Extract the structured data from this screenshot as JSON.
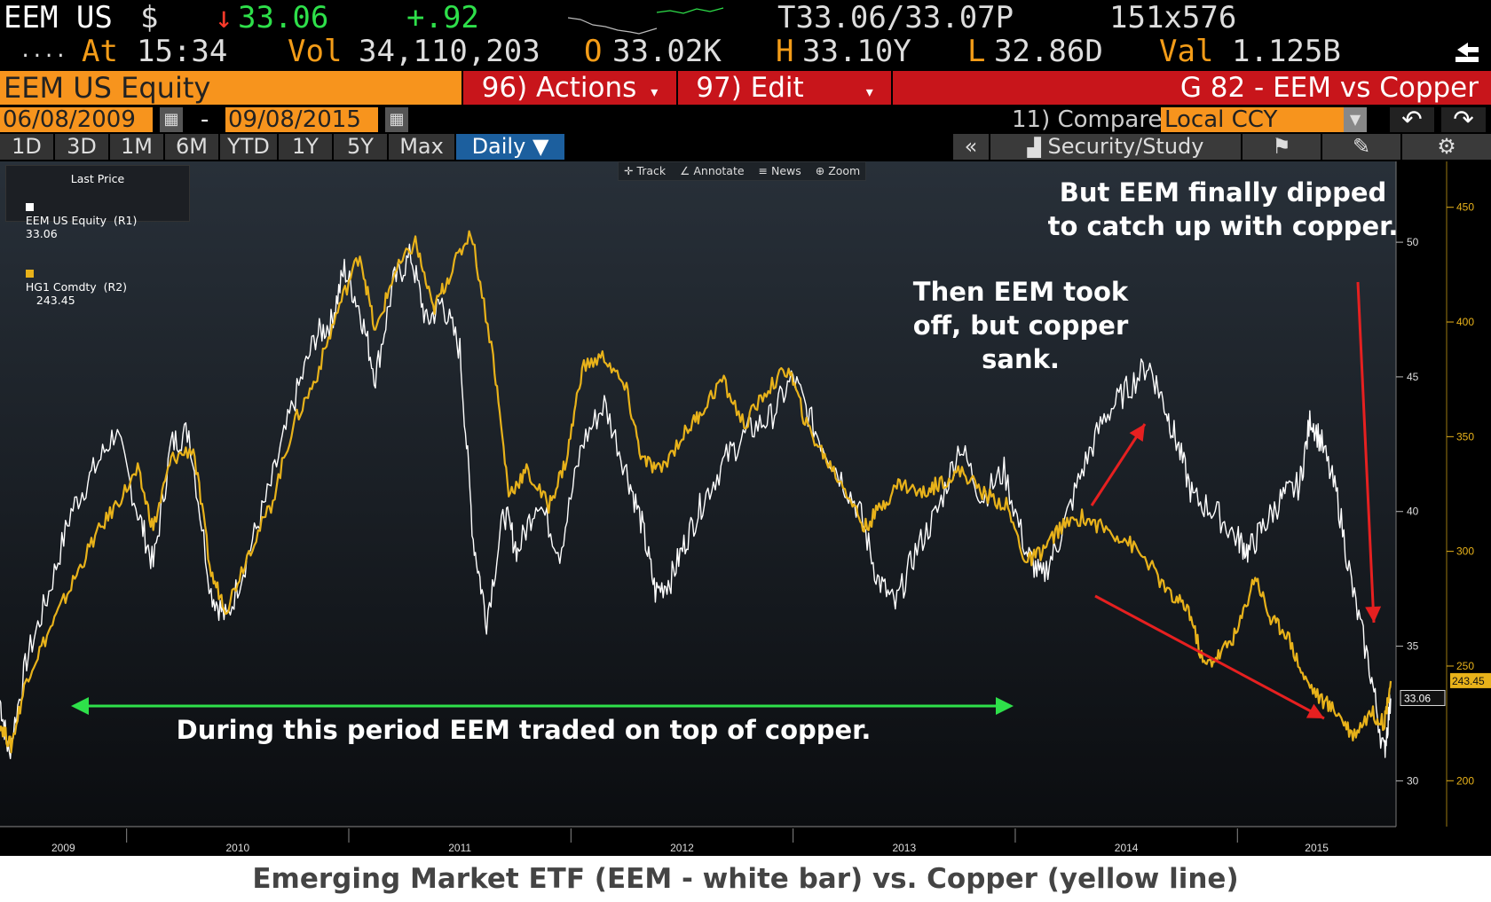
{
  "quote": {
    "ticker": "EEM US",
    "currency": "$",
    "last_arrow": "↓",
    "last": "33.06",
    "change": "+.92",
    "bid_ask": "T33.06/33.07P",
    "size": "151x576",
    "dots": "....",
    "at_label": "At",
    "time": "15:34",
    "vol_label": "Vol",
    "volume": "34,110,203",
    "open_label": "O",
    "open": "33.02K",
    "high_label": "H",
    "high": "33.10Y",
    "low_label": "L",
    "low": "32.86D",
    "val_label": "Val",
    "value": "1.125B"
  },
  "toolbar_row": {
    "security": "EEM US Equity",
    "actions": "96) Actions",
    "edit": "97) Edit",
    "graph_title": "G 82 - EEM vs Copper"
  },
  "date_row": {
    "start_date": "06/08/2009",
    "separator": "-",
    "end_date": "09/08/2015",
    "compare_label": "11) Compare",
    "ccy": "Local CCY",
    "back_icon": "undo-arrow-icon",
    "forward_icon": "redo-arrow-icon"
  },
  "range_tabs": [
    "1D",
    "3D",
    "1M",
    "6M",
    "YTD",
    "1Y",
    "5Y",
    "Max"
  ],
  "period": "Daily",
  "right_tools": {
    "collapse": "«",
    "security_study": "Security/Study",
    "flag_icon": "flag-icon",
    "edit_icon": "pencil-icon",
    "settings_icon": "gear-icon"
  },
  "chart_tools": [
    "Track",
    "Annotate",
    "News",
    "Zoom"
  ],
  "legend": {
    "title": "Last Price",
    "items": [
      {
        "label": "EEM US Equity  (R1)",
        "value": "33.06",
        "color": "#ffffff"
      },
      {
        "label": "HG1 Comdty  (R2)",
        "value": "243.45",
        "color": "#e8b21a"
      }
    ]
  },
  "chart_data": {
    "type": "line",
    "x_ticks": [
      "2009",
      "2010",
      "2011",
      "2012",
      "2013",
      "2014",
      "2015"
    ],
    "r1_axis": {
      "ticks": [
        30,
        35,
        40,
        45,
        50
      ],
      "ylim": [
        28.3,
        53.0
      ]
    },
    "r2_axis": {
      "ticks": [
        200,
        250,
        300,
        350,
        400,
        450
      ],
      "ylim": [
        180,
        470
      ]
    },
    "x_range": [
      2009.43,
      2015.69
    ],
    "series": [
      {
        "name": "EEM US Equity",
        "color": "#ffffff",
        "axis": "R1",
        "last_value": 33.06,
        "points": [
          [
            2009.43,
            33.0
          ],
          [
            2009.47,
            31.0
          ],
          [
            2009.55,
            34.5
          ],
          [
            2009.65,
            37.0
          ],
          [
            2009.75,
            40.0
          ],
          [
            2009.85,
            41.5
          ],
          [
            2009.95,
            43.0
          ],
          [
            2010.05,
            40.0
          ],
          [
            2010.12,
            38.0
          ],
          [
            2010.2,
            42.5
          ],
          [
            2010.28,
            43.0
          ],
          [
            2010.38,
            37.0
          ],
          [
            2010.45,
            36.0
          ],
          [
            2010.55,
            38.5
          ],
          [
            2010.65,
            41.0
          ],
          [
            2010.75,
            44.0
          ],
          [
            2010.85,
            46.5
          ],
          [
            2010.92,
            47.0
          ],
          [
            2010.98,
            49.0
          ],
          [
            2011.05,
            47.5
          ],
          [
            2011.12,
            45.0
          ],
          [
            2011.2,
            48.5
          ],
          [
            2011.28,
            49.5
          ],
          [
            2011.35,
            47.0
          ],
          [
            2011.42,
            47.8
          ],
          [
            2011.5,
            46.0
          ],
          [
            2011.56,
            39.0
          ],
          [
            2011.62,
            36.0
          ],
          [
            2011.7,
            40.0
          ],
          [
            2011.76,
            38.5
          ],
          [
            2011.85,
            40.5
          ],
          [
            2011.95,
            38.5
          ],
          [
            2012.05,
            42.5
          ],
          [
            2012.15,
            44.0
          ],
          [
            2012.25,
            41.5
          ],
          [
            2012.32,
            39.5
          ],
          [
            2012.38,
            37.0
          ],
          [
            2012.45,
            37.5
          ],
          [
            2012.52,
            39.0
          ],
          [
            2012.6,
            40.5
          ],
          [
            2012.7,
            42.0
          ],
          [
            2012.8,
            43.0
          ],
          [
            2012.9,
            43.5
          ],
          [
            2013.0,
            45.0
          ],
          [
            2013.1,
            43.0
          ],
          [
            2013.2,
            41.5
          ],
          [
            2013.3,
            40.0
          ],
          [
            2013.38,
            37.5
          ],
          [
            2013.46,
            36.5
          ],
          [
            2013.55,
            38.5
          ],
          [
            2013.65,
            40.0
          ],
          [
            2013.75,
            42.5
          ],
          [
            2013.85,
            40.5
          ],
          [
            2013.95,
            41.5
          ],
          [
            2014.05,
            38.5
          ],
          [
            2014.12,
            37.5
          ],
          [
            2014.2,
            39.0
          ],
          [
            2014.3,
            41.5
          ],
          [
            2014.4,
            43.5
          ],
          [
            2014.5,
            44.5
          ],
          [
            2014.6,
            45.5
          ],
          [
            2014.67,
            44.0
          ],
          [
            2014.73,
            42.5
          ],
          [
            2014.8,
            40.5
          ],
          [
            2014.9,
            40.0
          ],
          [
            2015.0,
            39.0
          ],
          [
            2015.05,
            38.5
          ],
          [
            2015.12,
            39.5
          ],
          [
            2015.2,
            40.5
          ],
          [
            2015.28,
            41.0
          ],
          [
            2015.33,
            43.5
          ],
          [
            2015.38,
            42.5
          ],
          [
            2015.45,
            40.5
          ],
          [
            2015.52,
            37.0
          ],
          [
            2015.6,
            34.0
          ],
          [
            2015.66,
            31.0
          ],
          [
            2015.69,
            33.06
          ]
        ]
      },
      {
        "name": "HG1 Comdty",
        "color": "#e8b21a",
        "axis": "R2",
        "last_value": 243.45,
        "points": [
          [
            2009.43,
            225
          ],
          [
            2009.48,
            215
          ],
          [
            2009.55,
            245
          ],
          [
            2009.65,
            265
          ],
          [
            2009.75,
            285
          ],
          [
            2009.85,
            305
          ],
          [
            2009.95,
            320
          ],
          [
            2010.05,
            335
          ],
          [
            2010.12,
            310
          ],
          [
            2010.2,
            340
          ],
          [
            2010.3,
            345
          ],
          [
            2010.38,
            290
          ],
          [
            2010.45,
            275
          ],
          [
            2010.55,
            300
          ],
          [
            2010.65,
            320
          ],
          [
            2010.75,
            355
          ],
          [
            2010.85,
            375
          ],
          [
            2010.95,
            405
          ],
          [
            2011.05,
            430
          ],
          [
            2011.12,
            395
          ],
          [
            2011.2,
            420
          ],
          [
            2011.3,
            435
          ],
          [
            2011.38,
            405
          ],
          [
            2011.45,
            420
          ],
          [
            2011.55,
            440
          ],
          [
            2011.65,
            385
          ],
          [
            2011.72,
            325
          ],
          [
            2011.8,
            335
          ],
          [
            2011.9,
            320
          ],
          [
            2011.98,
            340
          ],
          [
            2012.05,
            380
          ],
          [
            2012.15,
            385
          ],
          [
            2012.25,
            370
          ],
          [
            2012.32,
            340
          ],
          [
            2012.4,
            335
          ],
          [
            2012.5,
            350
          ],
          [
            2012.58,
            360
          ],
          [
            2012.68,
            375
          ],
          [
            2012.78,
            355
          ],
          [
            2012.88,
            370
          ],
          [
            2012.98,
            380
          ],
          [
            2013.06,
            355
          ],
          [
            2013.15,
            340
          ],
          [
            2013.25,
            325
          ],
          [
            2013.32,
            310
          ],
          [
            2013.4,
            320
          ],
          [
            2013.48,
            330
          ],
          [
            2013.58,
            325
          ],
          [
            2013.66,
            330
          ],
          [
            2013.76,
            335
          ],
          [
            2013.86,
            325
          ],
          [
            2013.96,
            320
          ],
          [
            2014.05,
            295
          ],
          [
            2014.12,
            300
          ],
          [
            2014.2,
            310
          ],
          [
            2014.3,
            315
          ],
          [
            2014.4,
            310
          ],
          [
            2014.5,
            305
          ],
          [
            2014.6,
            295
          ],
          [
            2014.7,
            280
          ],
          [
            2014.78,
            275
          ],
          [
            2014.85,
            250
          ],
          [
            2014.92,
            255
          ],
          [
            2015.0,
            265
          ],
          [
            2015.08,
            290
          ],
          [
            2015.15,
            270
          ],
          [
            2015.22,
            265
          ],
          [
            2015.3,
            245
          ],
          [
            2015.38,
            235
          ],
          [
            2015.45,
            230
          ],
          [
            2015.52,
            220
          ],
          [
            2015.6,
            230
          ],
          [
            2015.66,
            225
          ],
          [
            2015.69,
            243.45
          ]
        ]
      }
    ]
  },
  "annotations": {
    "bottom": "During this period EEM traded on top of copper.",
    "middle": "Then EEM took off, but copper sank.",
    "top_right": "But EEM finally dipped to catch up with copper."
  },
  "price_tags": {
    "r1": "33.06",
    "r2": "243.45"
  },
  "caption": "Emerging Market ETF (EEM - white bar) vs. Copper (yellow line)"
}
